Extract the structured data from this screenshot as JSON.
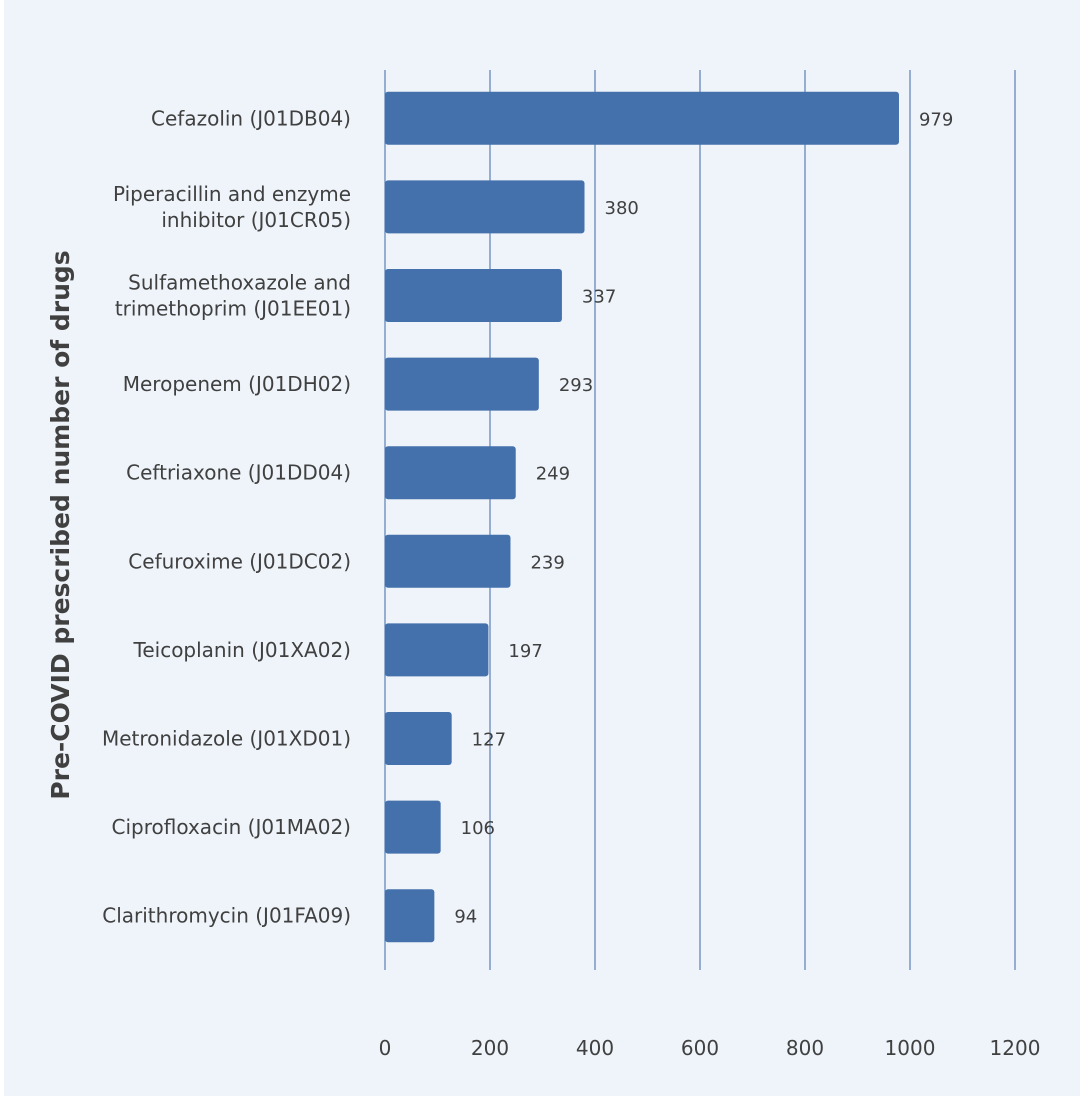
{
  "chart_data": {
    "type": "bar",
    "orientation": "horizontal",
    "title": "",
    "xlabel": "",
    "ylabel": "Pre-COVID prescribed number of drugs",
    "categories": [
      [
        "Cefazolin (J01DB04)"
      ],
      [
        "Piperacillin and enzyme",
        "inhibitor (J01CR05)"
      ],
      [
        "Sulfamethoxazole and",
        "trimethoprim (J01EE01)"
      ],
      [
        "Meropenem (J01DH02)"
      ],
      [
        "Ceftriaxone (J01DD04)"
      ],
      [
        "Cefuroxime (J01DC02)"
      ],
      [
        "Teicoplanin (J01XA02)"
      ],
      [
        "Metronidazole (J01XD01)"
      ],
      [
        "Ciprofloxacin (J01MA02)"
      ],
      [
        "Clarithromycin (J01FA09)"
      ]
    ],
    "values": [
      979,
      380,
      337,
      293,
      249,
      239,
      197,
      127,
      106,
      94
    ],
    "xlim": [
      0,
      1200
    ],
    "xticks": [
      0,
      200,
      400,
      600,
      800,
      1000,
      1200
    ],
    "grid": "vertical",
    "legend": "none",
    "colors": {
      "bar": "#4470ac",
      "background": "#eef4fa",
      "grid": "#5a7fb8",
      "text": "#404040"
    }
  }
}
